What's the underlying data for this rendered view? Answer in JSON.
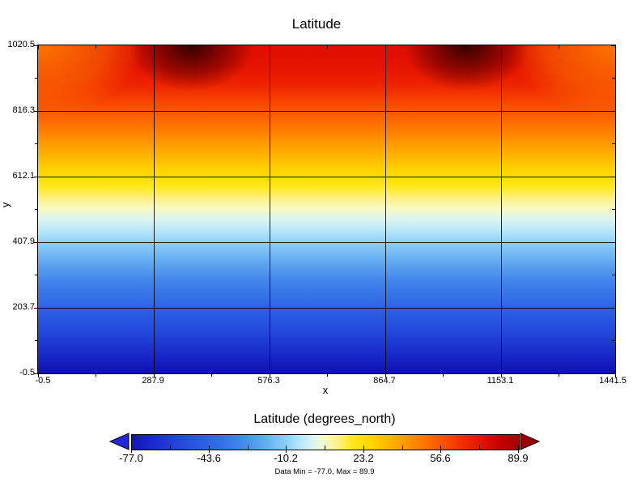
{
  "title": "Latitude",
  "plot": {
    "y_axis": {
      "label": "y",
      "ticks": [
        "1020.5",
        "816.3",
        "612.1",
        "407.9",
        "203.7",
        "-0.5"
      ]
    },
    "x_axis": {
      "label": "x",
      "ticks": [
        "-0.5",
        "287.9",
        "576.3",
        "864.7",
        "1153.1",
        "1441.5"
      ]
    }
  },
  "colorbar": {
    "title": "Latitude (degrees_north)",
    "ticks": [
      "-77.0",
      "-43.6",
      "-10.2",
      "23.2",
      "56.6",
      "89.9"
    ],
    "footnote": "Data Min = -77.0, Max = 89.9",
    "left_arrow_color": "#2228d8",
    "right_arrow_color": "#9b0000"
  },
  "chart_data": {
    "type": "heatmap",
    "title": "Latitude",
    "xlabel": "x",
    "ylabel": "y",
    "xlim": [
      -0.5,
      1441.5
    ],
    "ylim": [
      -0.5,
      1020.5
    ],
    "x_ticks": [
      -0.5,
      287.9,
      576.3,
      864.7,
      1153.1,
      1441.5
    ],
    "y_ticks": [
      -0.5,
      203.7,
      407.9,
      612.1,
      816.3,
      1020.5
    ],
    "grid": true,
    "data_min": -77.0,
    "data_max": 89.9,
    "colorbar": {
      "label": "Latitude (degrees_north)",
      "min": -77.0,
      "max": 89.9,
      "ticks": [
        -77.0,
        -43.6,
        -10.2,
        23.2,
        56.6,
        89.9
      ],
      "colormap": "dark blue -> blue -> light cyan -> pale yellow-white -> yellow -> orange -> red -> dark red",
      "extend_arrows": "both"
    },
    "y_to_latitude_profile": [
      [
        -0.5,
        -77.0
      ],
      [
        203.7,
        -43.6
      ],
      [
        407.9,
        -10.2
      ],
      [
        612.1,
        23.2
      ],
      [
        816.3,
        56.6
      ],
      [
        1020.5,
        89.9
      ]
    ],
    "field_description": "Latitude field increasing nearly linearly from -77.0 (dark blue, bottom) to 89.9 (dark red, top); two dark-red maxima lobes along the top edge centered near 26% and 74% of the x-range, with orange (cooler) values in the top corners"
  }
}
